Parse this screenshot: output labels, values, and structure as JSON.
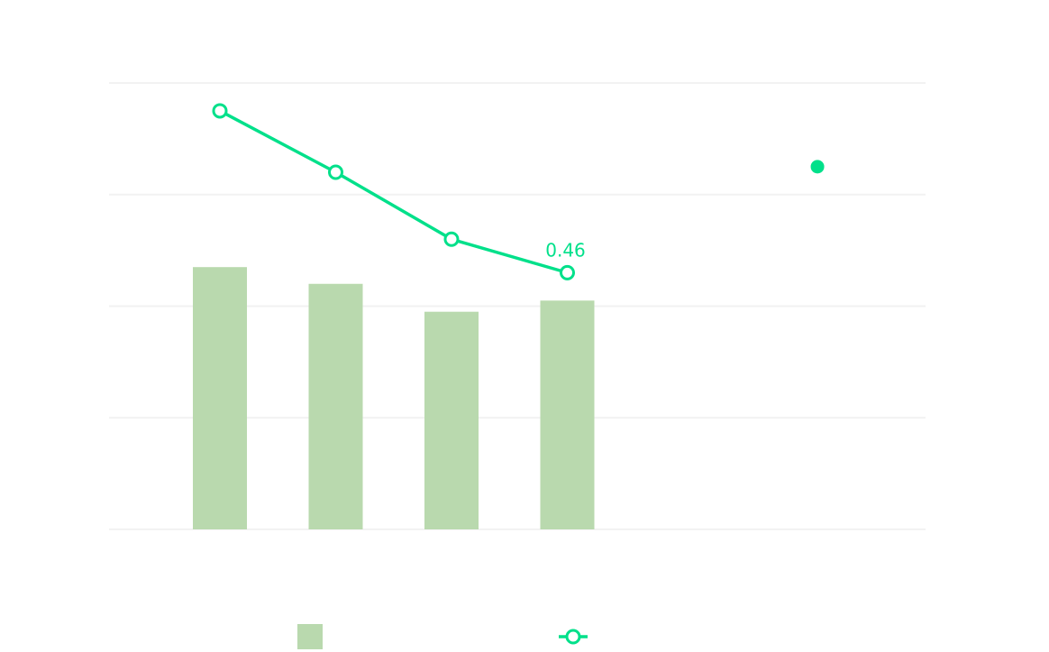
{
  "chart_data": {
    "type": "bar+line",
    "title": "",
    "xlabel": "",
    "ylabel": "",
    "ylim": [
      0,
      0.8
    ],
    "grid": true,
    "legend_position": "bottom",
    "colors": {
      "bar": "#b9d9ae",
      "line": "#00e08a",
      "grid": "#f2f2f2"
    },
    "x": [
      0,
      1,
      2,
      3
    ],
    "bar_series": {
      "values": [
        0.47,
        0.44,
        0.39,
        0.41
      ]
    },
    "line_series": {
      "values": [
        0.75,
        0.64,
        0.52,
        0.46
      ],
      "marker": "hollow-circle"
    },
    "data_labels": [
      {
        "index": 3,
        "text": "0.46"
      }
    ],
    "extra_point": {
      "x": 5.16,
      "y": 0.65,
      "marker": "filled-circle"
    }
  }
}
